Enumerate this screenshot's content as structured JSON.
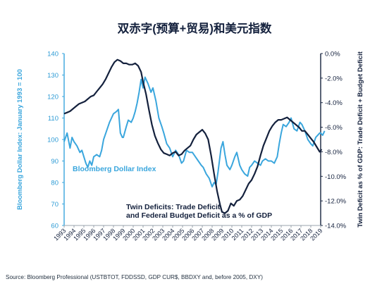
{
  "chart_data": {
    "type": "line",
    "title": "双赤字(预算+贸易)和美元指数",
    "source": "Source: Bloomberg Professional (USTBTOT, FDDSSD, GDP CUR$, BBDXY and, before 2005, DXY)",
    "x_tick_labels": [
      "1993",
      "1994",
      "1995",
      "1996",
      "1997",
      "1998",
      "1999",
      "2000",
      "2001",
      "2002",
      "2003",
      "2004",
      "2005",
      "2006",
      "2007",
      "2008",
      "2009",
      "2010",
      "2011",
      "2012",
      "2013",
      "2014",
      "2015",
      "2016",
      "2017",
      "2018",
      "2019"
    ],
    "xlim": [
      1993,
      2019
    ],
    "left_axis": {
      "label": "Bloomberg Dollar Index: January 1993 = 100",
      "range": [
        60,
        140
      ],
      "ticks": [
        "60",
        "70",
        "80",
        "90",
        "100",
        "110",
        "120",
        "130",
        "140"
      ],
      "color": "#3aa6dd"
    },
    "right_axis": {
      "label": "Twin Deficit as % of GDP: Trade Deficit + Budget Deficit",
      "range": [
        -14,
        0
      ],
      "ticks": [
        "0.0%",
        "-2.0%",
        "-4.0%",
        "-6.0%",
        "-8.0%",
        "-10.0%",
        "-12.0%",
        "-14.0%"
      ],
      "color": "#14213d"
    },
    "series": [
      {
        "name": "Bloomberg Dollar Index",
        "axis": "left",
        "color": "#3aa6dd",
        "label_lines": [
          "Bloomberg Dollar Index"
        ],
        "points": [
          [
            1993.0,
            99
          ],
          [
            1993.3,
            103
          ],
          [
            1993.6,
            96
          ],
          [
            1993.8,
            101
          ],
          [
            1994.0,
            99
          ],
          [
            1994.3,
            97
          ],
          [
            1994.6,
            94
          ],
          [
            1994.8,
            95
          ],
          [
            1995.0,
            92
          ],
          [
            1995.2,
            89
          ],
          [
            1995.4,
            87
          ],
          [
            1995.6,
            90
          ],
          [
            1995.8,
            88
          ],
          [
            1996.0,
            92
          ],
          [
            1996.3,
            93
          ],
          [
            1996.6,
            92
          ],
          [
            1996.8,
            95
          ],
          [
            1997.0,
            100
          ],
          [
            1997.3,
            104
          ],
          [
            1997.6,
            108
          ],
          [
            1997.8,
            110
          ],
          [
            1998.0,
            112
          ],
          [
            1998.3,
            113
          ],
          [
            1998.5,
            114
          ],
          [
            1998.7,
            103
          ],
          [
            1998.9,
            101
          ],
          [
            1999.0,
            101
          ],
          [
            1999.3,
            106
          ],
          [
            1999.5,
            109
          ],
          [
            1999.8,
            108
          ],
          [
            2000.0,
            110
          ],
          [
            2000.2,
            113
          ],
          [
            2000.4,
            117
          ],
          [
            2000.6,
            122
          ],
          [
            2000.8,
            128
          ],
          [
            2001.0,
            124
          ],
          [
            2001.2,
            129
          ],
          [
            2001.5,
            126
          ],
          [
            2001.8,
            122
          ],
          [
            2002.0,
            124
          ],
          [
            2002.3,
            118
          ],
          [
            2002.6,
            110
          ],
          [
            2002.9,
            106
          ],
          [
            2003.1,
            103
          ],
          [
            2003.4,
            98
          ],
          [
            2003.7,
            96
          ],
          [
            2004.0,
            92
          ],
          [
            2004.3,
            95
          ],
          [
            2004.6,
            93
          ],
          [
            2004.9,
            89
          ],
          [
            2005.1,
            90
          ],
          [
            2005.4,
            95
          ],
          [
            2005.7,
            94
          ],
          [
            2006.0,
            94
          ],
          [
            2006.3,
            92
          ],
          [
            2006.6,
            90
          ],
          [
            2006.9,
            88
          ],
          [
            2007.1,
            87
          ],
          [
            2007.4,
            84
          ],
          [
            2007.7,
            82
          ],
          [
            2008.0,
            78
          ],
          [
            2008.2,
            80
          ],
          [
            2008.4,
            79
          ],
          [
            2008.6,
            85
          ],
          [
            2008.9,
            96
          ],
          [
            2009.1,
            99
          ],
          [
            2009.3,
            93
          ],
          [
            2009.5,
            88
          ],
          [
            2009.8,
            86
          ],
          [
            2010.0,
            88
          ],
          [
            2010.3,
            92
          ],
          [
            2010.5,
            94
          ],
          [
            2010.8,
            88
          ],
          [
            2011.0,
            86
          ],
          [
            2011.3,
            84
          ],
          [
            2011.6,
            83
          ],
          [
            2011.8,
            87
          ],
          [
            2012.0,
            88
          ],
          [
            2012.3,
            90
          ],
          [
            2012.6,
            89
          ],
          [
            2012.9,
            88
          ],
          [
            2013.1,
            90
          ],
          [
            2013.4,
            91
          ],
          [
            2013.7,
            90
          ],
          [
            2014.0,
            90
          ],
          [
            2014.3,
            89
          ],
          [
            2014.6,
            92
          ],
          [
            2014.8,
            98
          ],
          [
            2015.0,
            103
          ],
          [
            2015.2,
            107
          ],
          [
            2015.5,
            106
          ],
          [
            2015.8,
            108
          ],
          [
            2016.0,
            110
          ],
          [
            2016.3,
            105
          ],
          [
            2016.6,
            104
          ],
          [
            2016.9,
            108
          ],
          [
            2017.1,
            107
          ],
          [
            2017.4,
            104
          ],
          [
            2017.7,
            100
          ],
          [
            2018.0,
            98
          ],
          [
            2018.2,
            97
          ],
          [
            2018.5,
            101
          ],
          [
            2018.7,
            102
          ],
          [
            2018.9,
            103
          ],
          [
            2019.0,
            103
          ],
          [
            2019.2,
            102
          ],
          [
            2019.4,
            104
          ]
        ]
      },
      {
        "name": "Twin Deficits: Trade Deficit and Federal Budget Deficit as a % of GDP",
        "axis": "right",
        "color": "#14213d",
        "label_lines": [
          "Twin Deficits: Trade Deficit",
          "and Federal Budget Deficit as a % of GDP"
        ],
        "points": [
          [
            1993.0,
            -4.9
          ],
          [
            1993.3,
            -4.8
          ],
          [
            1993.6,
            -4.7
          ],
          [
            1993.9,
            -4.5
          ],
          [
            1994.2,
            -4.3
          ],
          [
            1994.5,
            -4.1
          ],
          [
            1994.8,
            -4.0
          ],
          [
            1995.1,
            -3.9
          ],
          [
            1995.4,
            -3.7
          ],
          [
            1995.7,
            -3.5
          ],
          [
            1996.0,
            -3.4
          ],
          [
            1996.3,
            -3.1
          ],
          [
            1996.6,
            -2.8
          ],
          [
            1996.9,
            -2.5
          ],
          [
            1997.2,
            -2.1
          ],
          [
            1997.5,
            -1.6
          ],
          [
            1997.8,
            -1.1
          ],
          [
            1998.1,
            -0.7
          ],
          [
            1998.4,
            -0.5
          ],
          [
            1998.7,
            -0.6
          ],
          [
            1999.0,
            -0.8
          ],
          [
            1999.3,
            -0.8
          ],
          [
            1999.6,
            -0.9
          ],
          [
            1999.9,
            -0.9
          ],
          [
            2000.2,
            -0.8
          ],
          [
            2000.5,
            -1.0
          ],
          [
            2000.8,
            -1.5
          ],
          [
            2001.0,
            -2.3
          ],
          [
            2001.3,
            -3.3
          ],
          [
            2001.6,
            -4.6
          ],
          [
            2001.9,
            -5.8
          ],
          [
            2002.2,
            -6.7
          ],
          [
            2002.5,
            -7.3
          ],
          [
            2002.8,
            -7.8
          ],
          [
            2003.1,
            -8.1
          ],
          [
            2003.4,
            -8.2
          ],
          [
            2003.7,
            -8.3
          ],
          [
            2004.0,
            -8.1
          ],
          [
            2004.3,
            -8.0
          ],
          [
            2004.6,
            -8.3
          ],
          [
            2004.9,
            -8.2
          ],
          [
            2005.2,
            -7.9
          ],
          [
            2005.5,
            -7.7
          ],
          [
            2005.8,
            -7.5
          ],
          [
            2006.1,
            -7.0
          ],
          [
            2006.4,
            -6.6
          ],
          [
            2006.7,
            -6.4
          ],
          [
            2007.0,
            -6.2
          ],
          [
            2007.3,
            -6.5
          ],
          [
            2007.6,
            -7.0
          ],
          [
            2007.9,
            -8.3
          ],
          [
            2008.2,
            -9.8
          ],
          [
            2008.5,
            -11.2
          ],
          [
            2008.8,
            -12.3
          ],
          [
            2009.0,
            -12.9
          ],
          [
            2009.3,
            -13.0
          ],
          [
            2009.6,
            -12.8
          ],
          [
            2009.9,
            -12.2
          ],
          [
            2010.2,
            -12.4
          ],
          [
            2010.5,
            -12.0
          ],
          [
            2010.8,
            -11.9
          ],
          [
            2011.1,
            -11.6
          ],
          [
            2011.4,
            -11.1
          ],
          [
            2011.7,
            -10.6
          ],
          [
            2012.0,
            -10.3
          ],
          [
            2012.3,
            -9.8
          ],
          [
            2012.6,
            -9.2
          ],
          [
            2012.9,
            -8.3
          ],
          [
            2013.2,
            -7.5
          ],
          [
            2013.5,
            -6.9
          ],
          [
            2013.8,
            -6.3
          ],
          [
            2014.1,
            -5.9
          ],
          [
            2014.4,
            -5.6
          ],
          [
            2014.7,
            -5.4
          ],
          [
            2015.0,
            -5.4
          ],
          [
            2015.3,
            -5.3
          ],
          [
            2015.6,
            -5.2
          ],
          [
            2015.9,
            -5.4
          ],
          [
            2016.2,
            -5.6
          ],
          [
            2016.5,
            -5.8
          ],
          [
            2016.8,
            -6.0
          ],
          [
            2017.1,
            -6.3
          ],
          [
            2017.4,
            -6.3
          ],
          [
            2017.7,
            -6.6
          ],
          [
            2018.0,
            -6.9
          ],
          [
            2018.3,
            -7.2
          ],
          [
            2018.6,
            -7.6
          ],
          [
            2018.9,
            -8.0
          ],
          [
            2019.1,
            -7.8
          ]
        ]
      }
    ],
    "grid": false,
    "legend": "inline labels"
  }
}
